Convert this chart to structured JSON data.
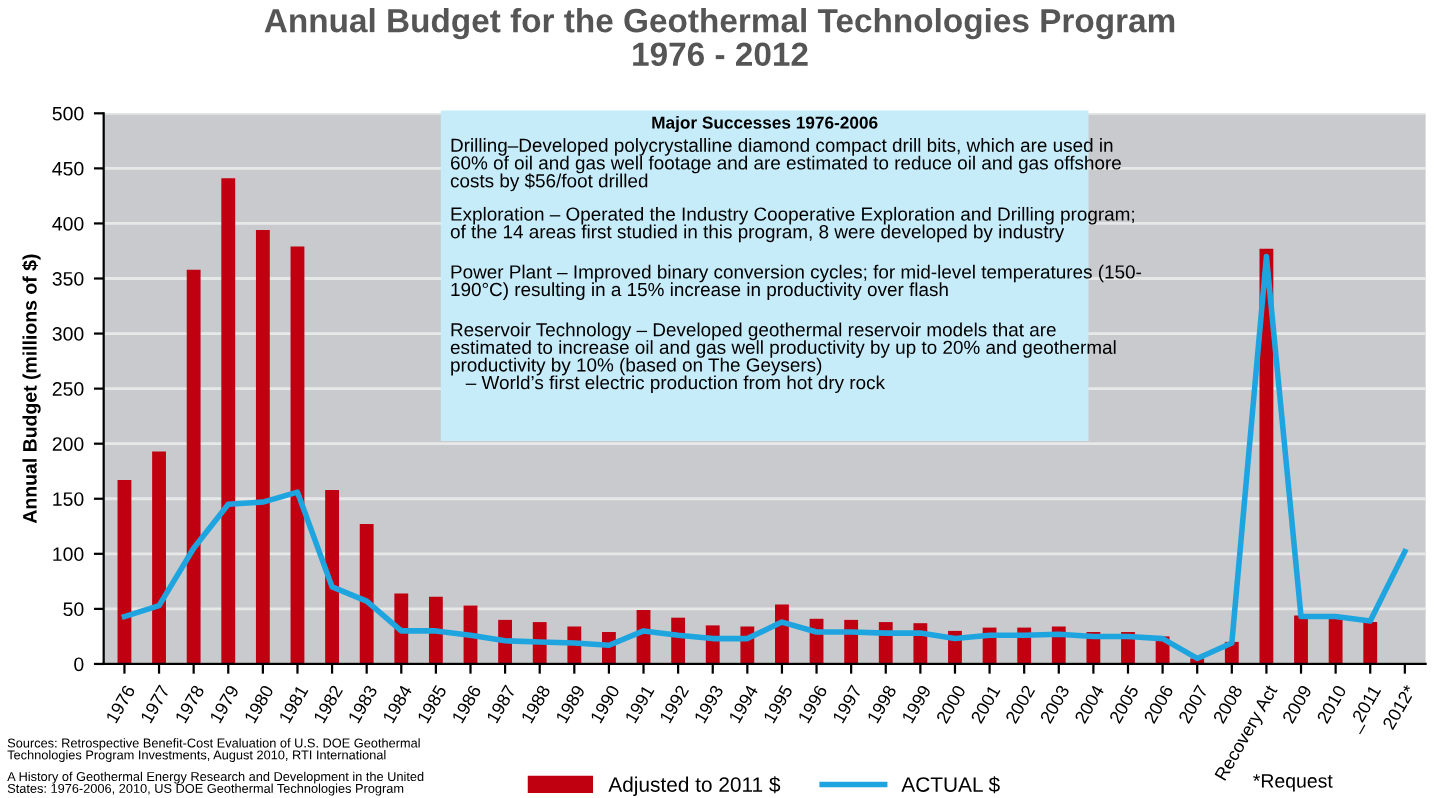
{
  "chart_data": {
    "type": "bar",
    "title": "Annual Budget for the Geothermal Technologies Program\n1976 - 2012",
    "ylabel": "Annual Budget (millions of $)",
    "categories": [
      "1976",
      "1977",
      "1978",
      "1979",
      "1980",
      "1981",
      "1982",
      "1983",
      "1984",
      "1985",
      "1986",
      "1987",
      "1988",
      "1989",
      "1990",
      "1991",
      "1992",
      "1993",
      "1994",
      "1995",
      "1996",
      "1997",
      "1998",
      "1999",
      "2000",
      "2001",
      "2002",
      "2003",
      "2004",
      "2005",
      "2006",
      "2007",
      "2008",
      "Recovery Act",
      "2009",
      "2010",
      "_2011",
      "2012*"
    ],
    "series": [
      {
        "name": "Adjusted to 2011 $",
        "color": "#c00010",
        "values": [
          167,
          193,
          358,
          441,
          394,
          379,
          158,
          127,
          64,
          61,
          53,
          40,
          38,
          34,
          29,
          49,
          42,
          35,
          34,
          54,
          41,
          40,
          38,
          37,
          30,
          33,
          33,
          34,
          29,
          29,
          25,
          5,
          20,
          377,
          44,
          42,
          38,
          null
        ]
      },
      {
        "name": "ACTUAL $",
        "type": "line",
        "color": "#1ea5e0",
        "values": [
          43,
          53,
          105,
          145,
          147,
          156,
          70,
          57,
          30,
          30,
          26,
          21,
          20,
          19,
          17,
          30,
          26,
          23,
          23,
          38,
          29,
          29,
          28,
          28,
          23,
          26,
          26,
          27,
          25,
          25,
          23,
          5,
          19,
          370,
          43,
          43,
          39,
          102
        ]
      }
    ],
    "ylim": [
      0,
      500
    ],
    "yticks": [
      0,
      50,
      100,
      150,
      200,
      250,
      300,
      350,
      400,
      450,
      500
    ],
    "grid": "y",
    "legend": "bottom",
    "marker": "none",
    "line_style": "solid",
    "annotations": [
      "Major Successes 1976-2006",
      "Drilling–Developed polycrystalline diamond compact drill bits, which are used in\n60% of oil and gas well footage and are estimated to reduce oil and gas offshore\ncosts by $56/foot drilled",
      "Exploration – Operated the Industry Cooperative Exploration and Drilling program;\nof the 14 areas first studied in this program, 8 were developed by industry",
      "Power Plant – Improved binary conversion cycles; for mid-level temperatures (150-\n190°C) resulting in a 15% increase in productivity over flash",
      "Reservoir Technology – Developed geothermal reservoir models that are\nestimated to increase oil and gas well productivity by up to 20% and geothermal\nproductivity by 10% (based on The Geysers)\n   – World’s first electric production from hot dry rock",
      "Sources: Retrospective Benefit-Cost Evaluation of U.S. DOE Geothermal\nTechnologies Program Investments, August 2010, RTI International",
      "A History of Geothermal Energy Research and Development in the United\nStates: 1976-2006, 2010, US DOE Geothermal Technologies Program",
      "*Request"
    ]
  }
}
